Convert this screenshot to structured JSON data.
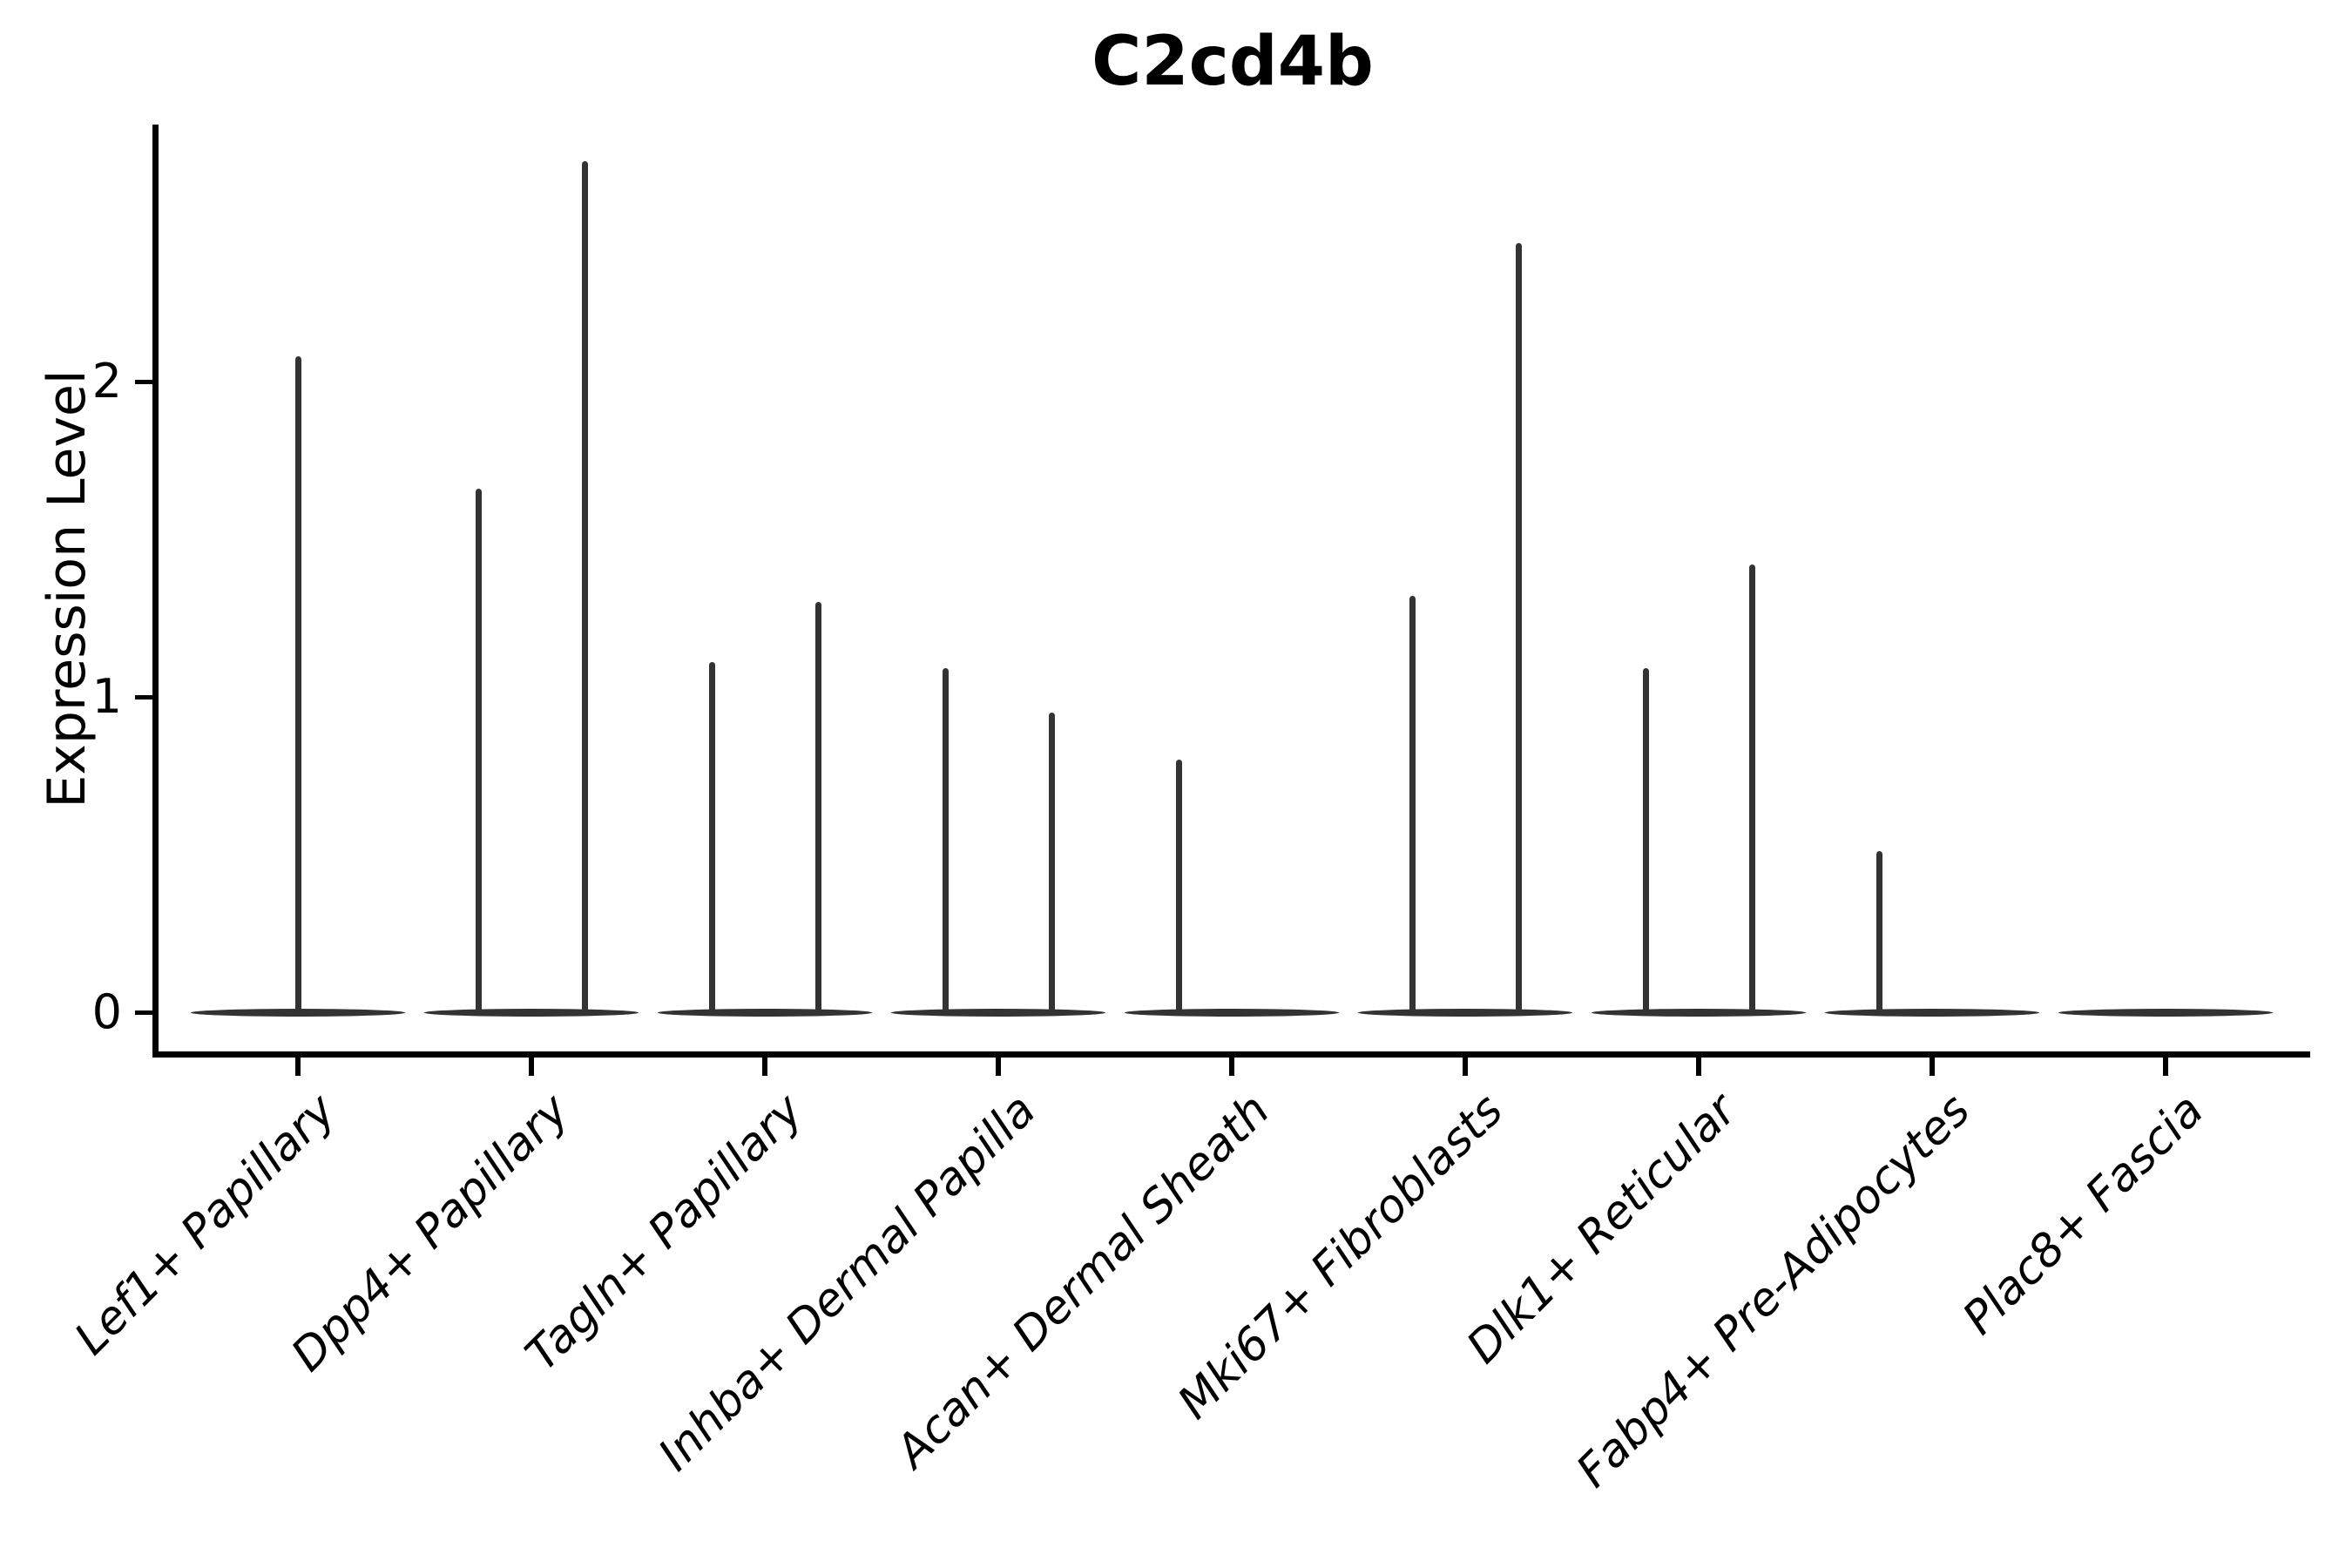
{
  "chart_data": {
    "type": "violin",
    "title": "C2cd4b",
    "ylabel": "Expression Level",
    "xlabel": "",
    "yticks": [
      0,
      1,
      2
    ],
    "ylim": [
      -0.13,
      2.81
    ],
    "grid": false,
    "legend": "none",
    "background": "#ffffff",
    "colors": {
      "violin_stroke": "#333333",
      "axis": "#000000",
      "text": "#000000"
    },
    "categories": [
      "Lef1+ Papillary",
      "Dpp4+ Papillary",
      "Tagln+ Papillary",
      "Inhba+ Dermal Papilla",
      "Acan+ Dermal Sheath",
      "Mki67+ Fibroblasts",
      "Dlk1+ Reticular",
      "Fabp4+ Pre-Adipocytes",
      "Plac8+ Fascia"
    ],
    "violins": [
      {
        "category": "Lef1+ Papillary",
        "zero_bulge": true,
        "spikes": [
          {
            "slot": "center",
            "max": 2.08
          }
        ]
      },
      {
        "category": "Dpp4+ Papillary",
        "zero_bulge": true,
        "spikes": [
          {
            "slot": "left",
            "max": 1.66
          },
          {
            "slot": "right",
            "max": 2.7
          }
        ]
      },
      {
        "category": "Tagln+ Papillary",
        "zero_bulge": true,
        "spikes": [
          {
            "slot": "left",
            "max": 1.11
          },
          {
            "slot": "right",
            "max": 1.3
          }
        ]
      },
      {
        "category": "Inhba+ Dermal Papilla",
        "zero_bulge": true,
        "spikes": [
          {
            "slot": "left",
            "max": 1.09
          },
          {
            "slot": "right",
            "max": 0.95
          }
        ]
      },
      {
        "category": "Acan+ Dermal Sheath",
        "zero_bulge": true,
        "spikes": [
          {
            "slot": "left",
            "max": 0.8
          }
        ]
      },
      {
        "category": "Mki67+ Fibroblasts",
        "zero_bulge": true,
        "spikes": [
          {
            "slot": "left",
            "max": 1.32
          },
          {
            "slot": "right",
            "max": 2.44
          }
        ]
      },
      {
        "category": "Dlk1+ Reticular",
        "zero_bulge": true,
        "spikes": [
          {
            "slot": "left",
            "max": 1.09
          },
          {
            "slot": "right",
            "max": 1.42
          }
        ]
      },
      {
        "category": "Fabp4+ Pre-Adipocytes",
        "zero_bulge": true,
        "spikes": [
          {
            "slot": "left",
            "max": 0.51
          }
        ]
      },
      {
        "category": "Plac8+ Fascia",
        "zero_bulge": true,
        "spikes": []
      }
    ]
  }
}
